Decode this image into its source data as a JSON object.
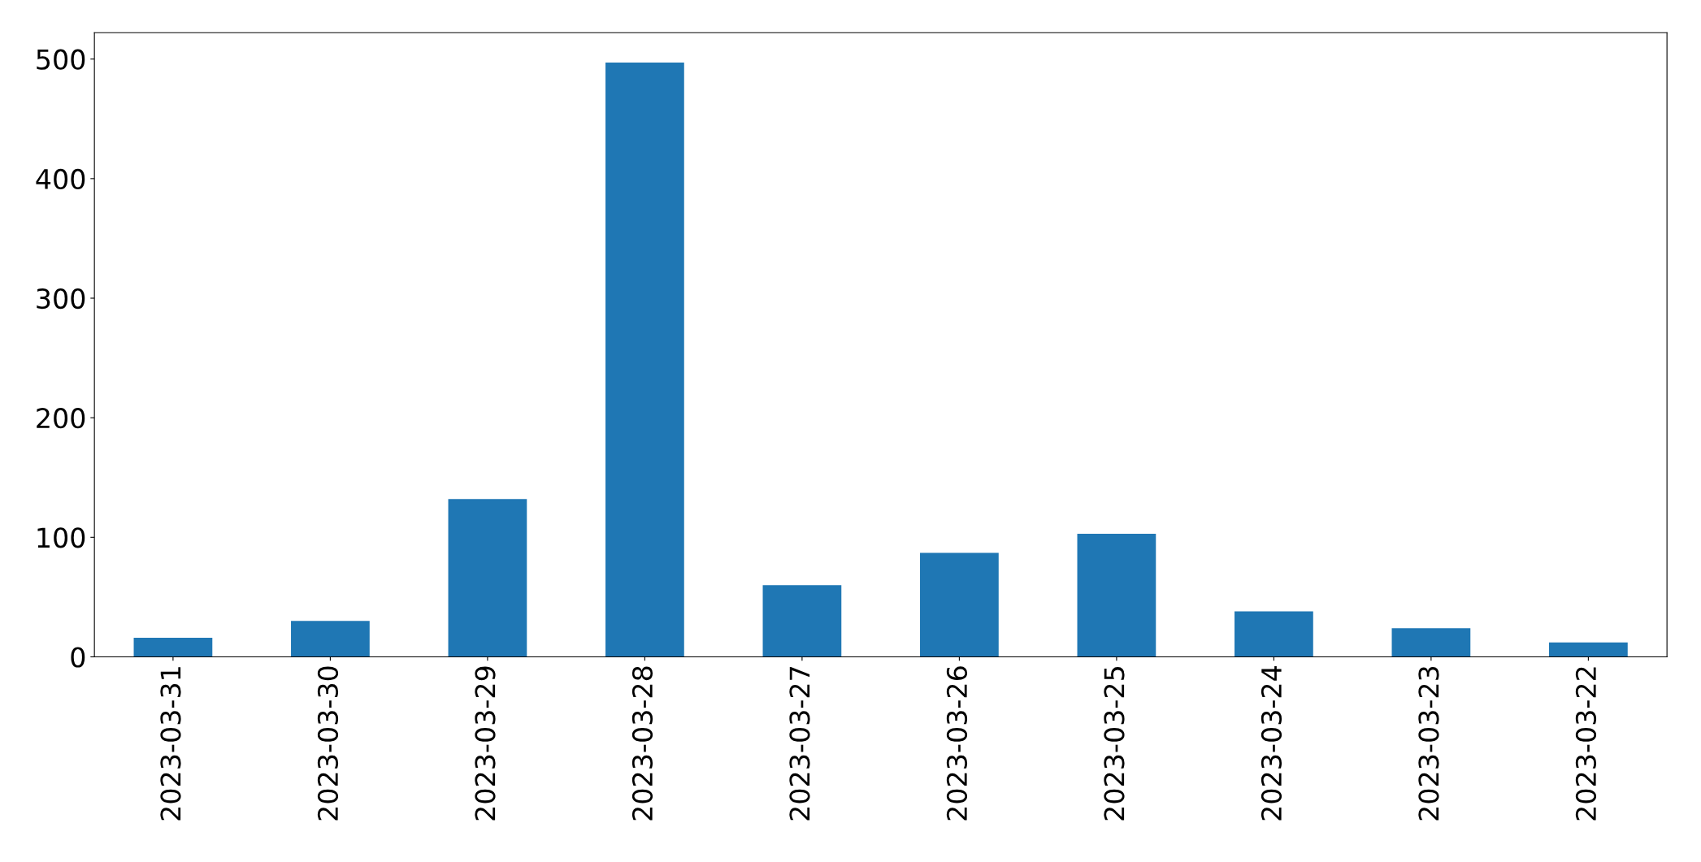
{
  "chart_data": {
    "type": "bar",
    "categories": [
      "2023-03-31",
      "2023-03-30",
      "2023-03-29",
      "2023-03-28",
      "2023-03-27",
      "2023-03-26",
      "2023-03-25",
      "2023-03-24",
      "2023-03-23",
      "2023-03-22"
    ],
    "values": [
      16,
      30,
      132,
      497,
      60,
      87,
      103,
      38,
      24,
      12
    ],
    "color": "#1f77b4",
    "ylim": [
      0,
      522
    ],
    "yticks": [
      0,
      100,
      200,
      300,
      400,
      500
    ],
    "grid": false
  }
}
